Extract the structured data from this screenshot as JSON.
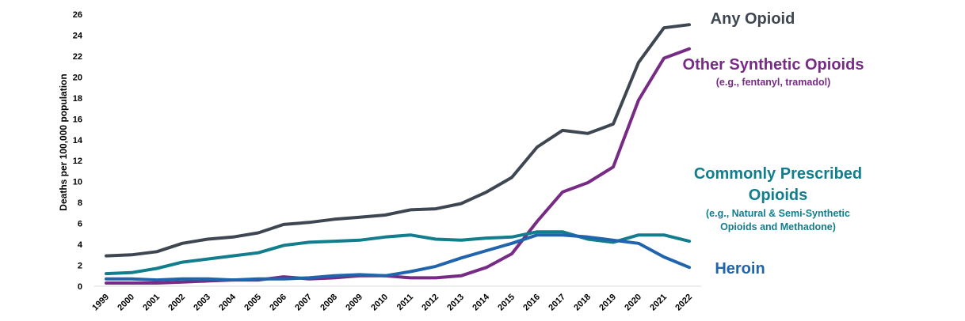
{
  "chart_data": {
    "type": "line",
    "title": "",
    "xlabel": "",
    "ylabel": "Deaths per 100,000 population",
    "ylim": [
      0,
      26
    ],
    "yticks": [
      "0",
      "2",
      "4",
      "6",
      "8",
      "10",
      "12",
      "14",
      "16",
      "18",
      "20",
      "22",
      "24",
      "26"
    ],
    "grid": false,
    "categories": [
      "1999",
      "2000",
      "2001",
      "2002",
      "2003",
      "2004",
      "2005",
      "2006",
      "2007",
      "2008",
      "2009",
      "2010",
      "2011",
      "2012",
      "2013",
      "2014",
      "2015",
      "2016",
      "2017",
      "2018",
      "2019",
      "2020",
      "2021",
      "2022"
    ],
    "series": [
      {
        "name": "Any Opioid",
        "color": "#3d4651",
        "label_lines": [
          "Any Opioid"
        ],
        "values": [
          2.9,
          3.0,
          3.3,
          4.1,
          4.5,
          4.7,
          5.1,
          5.9,
          6.1,
          6.4,
          6.6,
          6.8,
          7.3,
          7.4,
          7.9,
          9.0,
          10.4,
          13.3,
          14.9,
          14.6,
          15.5,
          21.4,
          24.7,
          25.0
        ]
      },
      {
        "name": "Other Synthetic Opioids",
        "color": "#772b84",
        "label_lines": [
          "Other Synthetic Opioids"
        ],
        "sub_lines": [
          "(e.g., fentanyl, tramadol)"
        ],
        "values": [
          0.3,
          0.3,
          0.3,
          0.4,
          0.5,
          0.6,
          0.6,
          0.9,
          0.7,
          0.8,
          1.0,
          1.0,
          0.8,
          0.8,
          1.0,
          1.8,
          3.1,
          6.2,
          9.0,
          9.9,
          11.4,
          17.8,
          21.8,
          22.7
        ]
      },
      {
        "name": "Commonly Prescribed Opioids",
        "color": "#127d8c",
        "label_lines": [
          "Commonly Prescribed",
          "Opioids"
        ],
        "sub_lines": [
          "(e.g., Natural & Semi-Synthetic",
          "Opioids and Methadone)"
        ],
        "values": [
          1.2,
          1.3,
          1.7,
          2.3,
          2.6,
          2.9,
          3.2,
          3.9,
          4.2,
          4.3,
          4.4,
          4.7,
          4.9,
          4.5,
          4.4,
          4.6,
          4.7,
          5.2,
          5.2,
          4.5,
          4.2,
          4.9,
          4.9,
          4.3
        ]
      },
      {
        "name": "Heroin",
        "color": "#1f64ad",
        "label_lines": [
          "Heroin"
        ],
        "values": [
          0.7,
          0.7,
          0.6,
          0.7,
          0.7,
          0.6,
          0.7,
          0.7,
          0.8,
          1.0,
          1.1,
          1.0,
          1.4,
          1.9,
          2.7,
          3.4,
          4.1,
          4.9,
          4.9,
          4.7,
          4.4,
          4.1,
          2.8,
          1.8
        ]
      }
    ]
  }
}
